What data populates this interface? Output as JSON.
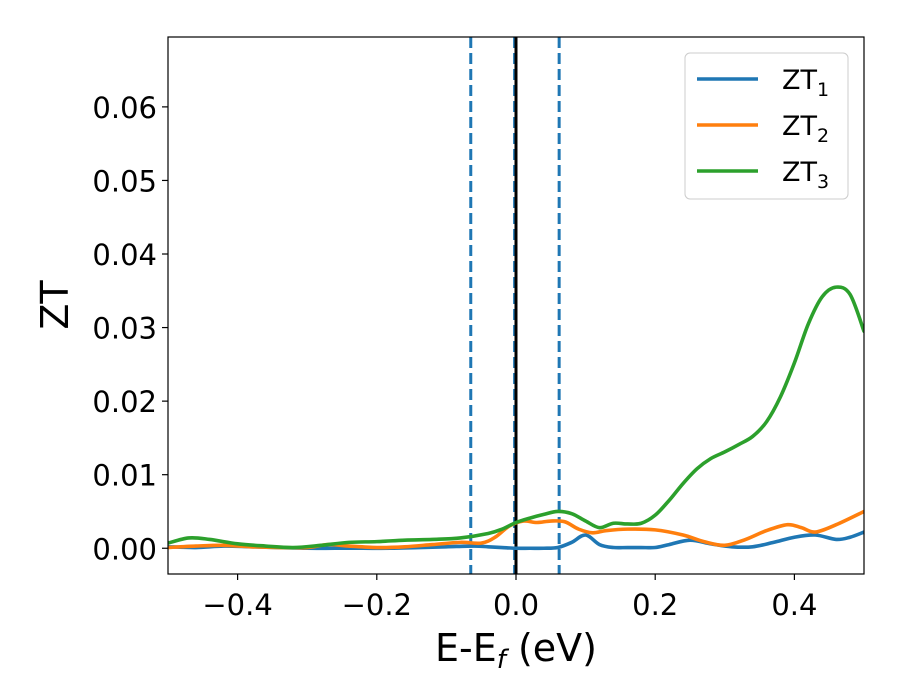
{
  "chart_data": {
    "type": "line",
    "xlabel": "E-E",
    "xlabel_sub": "f",
    "xlabel_unit": " (eV)",
    "ylabel": "ZT",
    "xlim": [
      -0.5,
      0.5
    ],
    "ylim": [
      -0.0035,
      0.0695
    ],
    "xticks": [
      -0.4,
      -0.2,
      0.0,
      0.2,
      0.4
    ],
    "xtick_labels": [
      "−0.4",
      "−0.2",
      "0.0",
      "0.2",
      "0.4"
    ],
    "yticks": [
      0.0,
      0.01,
      0.02,
      0.03,
      0.04,
      0.05,
      0.06
    ],
    "ytick_labels": [
      "0.00",
      "0.01",
      "0.02",
      "0.03",
      "0.04",
      "0.05",
      "0.06"
    ],
    "grid": false,
    "legend_position": "top-right",
    "vertical_lines": [
      {
        "x": -0.065,
        "style": "dashed",
        "color": "#1f77b4"
      },
      {
        "x": -0.002,
        "style": "dashed",
        "color": "#1f77b4"
      },
      {
        "x": 0.0,
        "style": "solid",
        "color": "#000000"
      },
      {
        "x": 0.062,
        "style": "dashed",
        "color": "#1f77b4"
      }
    ],
    "series": [
      {
        "name": "ZT",
        "name_sub": "1",
        "color": "#1f77b4",
        "x": [
          -0.5,
          -0.46,
          -0.42,
          -0.38,
          -0.34,
          -0.3,
          -0.26,
          -0.22,
          -0.18,
          -0.14,
          -0.1,
          -0.06,
          -0.04,
          -0.02,
          0.0,
          0.02,
          0.04,
          0.06,
          0.08,
          0.1,
          0.12,
          0.14,
          0.16,
          0.18,
          0.2,
          0.22,
          0.25,
          0.28,
          0.31,
          0.34,
          0.37,
          0.4,
          0.43,
          0.46,
          0.48,
          0.5
        ],
        "y": [
          0.0002,
          0.0001,
          0.0003,
          0.0002,
          0.0001,
          0.0,
          0.0,
          0.0,
          0.0,
          0.0001,
          0.0002,
          0.0003,
          0.0002,
          0.0001,
          0.0,
          0.0,
          0.0,
          0.0001,
          0.0008,
          0.0018,
          0.0005,
          0.0001,
          0.0001,
          0.0001,
          0.0001,
          0.0005,
          0.0011,
          0.0006,
          0.0002,
          0.0002,
          0.0008,
          0.0015,
          0.0018,
          0.0012,
          0.0015,
          0.0022
        ]
      },
      {
        "name": "ZT",
        "name_sub": "2",
        "color": "#ff7f0e",
        "x": [
          -0.5,
          -0.46,
          -0.42,
          -0.38,
          -0.34,
          -0.3,
          -0.27,
          -0.24,
          -0.2,
          -0.16,
          -0.12,
          -0.08,
          -0.05,
          -0.03,
          -0.01,
          0.01,
          0.03,
          0.05,
          0.07,
          0.09,
          0.11,
          0.13,
          0.16,
          0.2,
          0.24,
          0.27,
          0.3,
          0.33,
          0.36,
          0.39,
          0.41,
          0.43,
          0.46,
          0.5
        ],
        "y": [
          0.0001,
          0.0003,
          0.0004,
          0.0002,
          0.0001,
          0.0001,
          0.0005,
          0.0003,
          0.0001,
          0.0002,
          0.0005,
          0.0008,
          0.0007,
          0.0015,
          0.003,
          0.0037,
          0.0035,
          0.0037,
          0.0036,
          0.0026,
          0.0021,
          0.0024,
          0.0026,
          0.0025,
          0.0018,
          0.0009,
          0.0004,
          0.0012,
          0.0024,
          0.0032,
          0.0028,
          0.0022,
          0.0032,
          0.005
        ]
      },
      {
        "name": "ZT",
        "name_sub": "3",
        "color": "#2ca02c",
        "x": [
          -0.5,
          -0.47,
          -0.44,
          -0.4,
          -0.36,
          -0.32,
          -0.28,
          -0.24,
          -0.2,
          -0.16,
          -0.12,
          -0.08,
          -0.04,
          -0.02,
          0.0,
          0.02,
          0.04,
          0.06,
          0.08,
          0.1,
          0.12,
          0.14,
          0.16,
          0.18,
          0.2,
          0.22,
          0.24,
          0.26,
          0.28,
          0.3,
          0.32,
          0.34,
          0.36,
          0.38,
          0.4,
          0.42,
          0.44,
          0.46,
          0.48,
          0.5
        ],
        "y": [
          0.0007,
          0.0014,
          0.0012,
          0.0006,
          0.0003,
          0.0001,
          0.0004,
          0.0008,
          0.0009,
          0.0011,
          0.0012,
          0.0014,
          0.002,
          0.0026,
          0.0035,
          0.0041,
          0.0046,
          0.005,
          0.0047,
          0.0037,
          0.0028,
          0.0034,
          0.0033,
          0.0034,
          0.0045,
          0.0065,
          0.0088,
          0.0108,
          0.0122,
          0.0131,
          0.0141,
          0.0152,
          0.0172,
          0.0206,
          0.0252,
          0.0305,
          0.0342,
          0.0355,
          0.0345,
          0.0295
        ]
      }
    ]
  }
}
